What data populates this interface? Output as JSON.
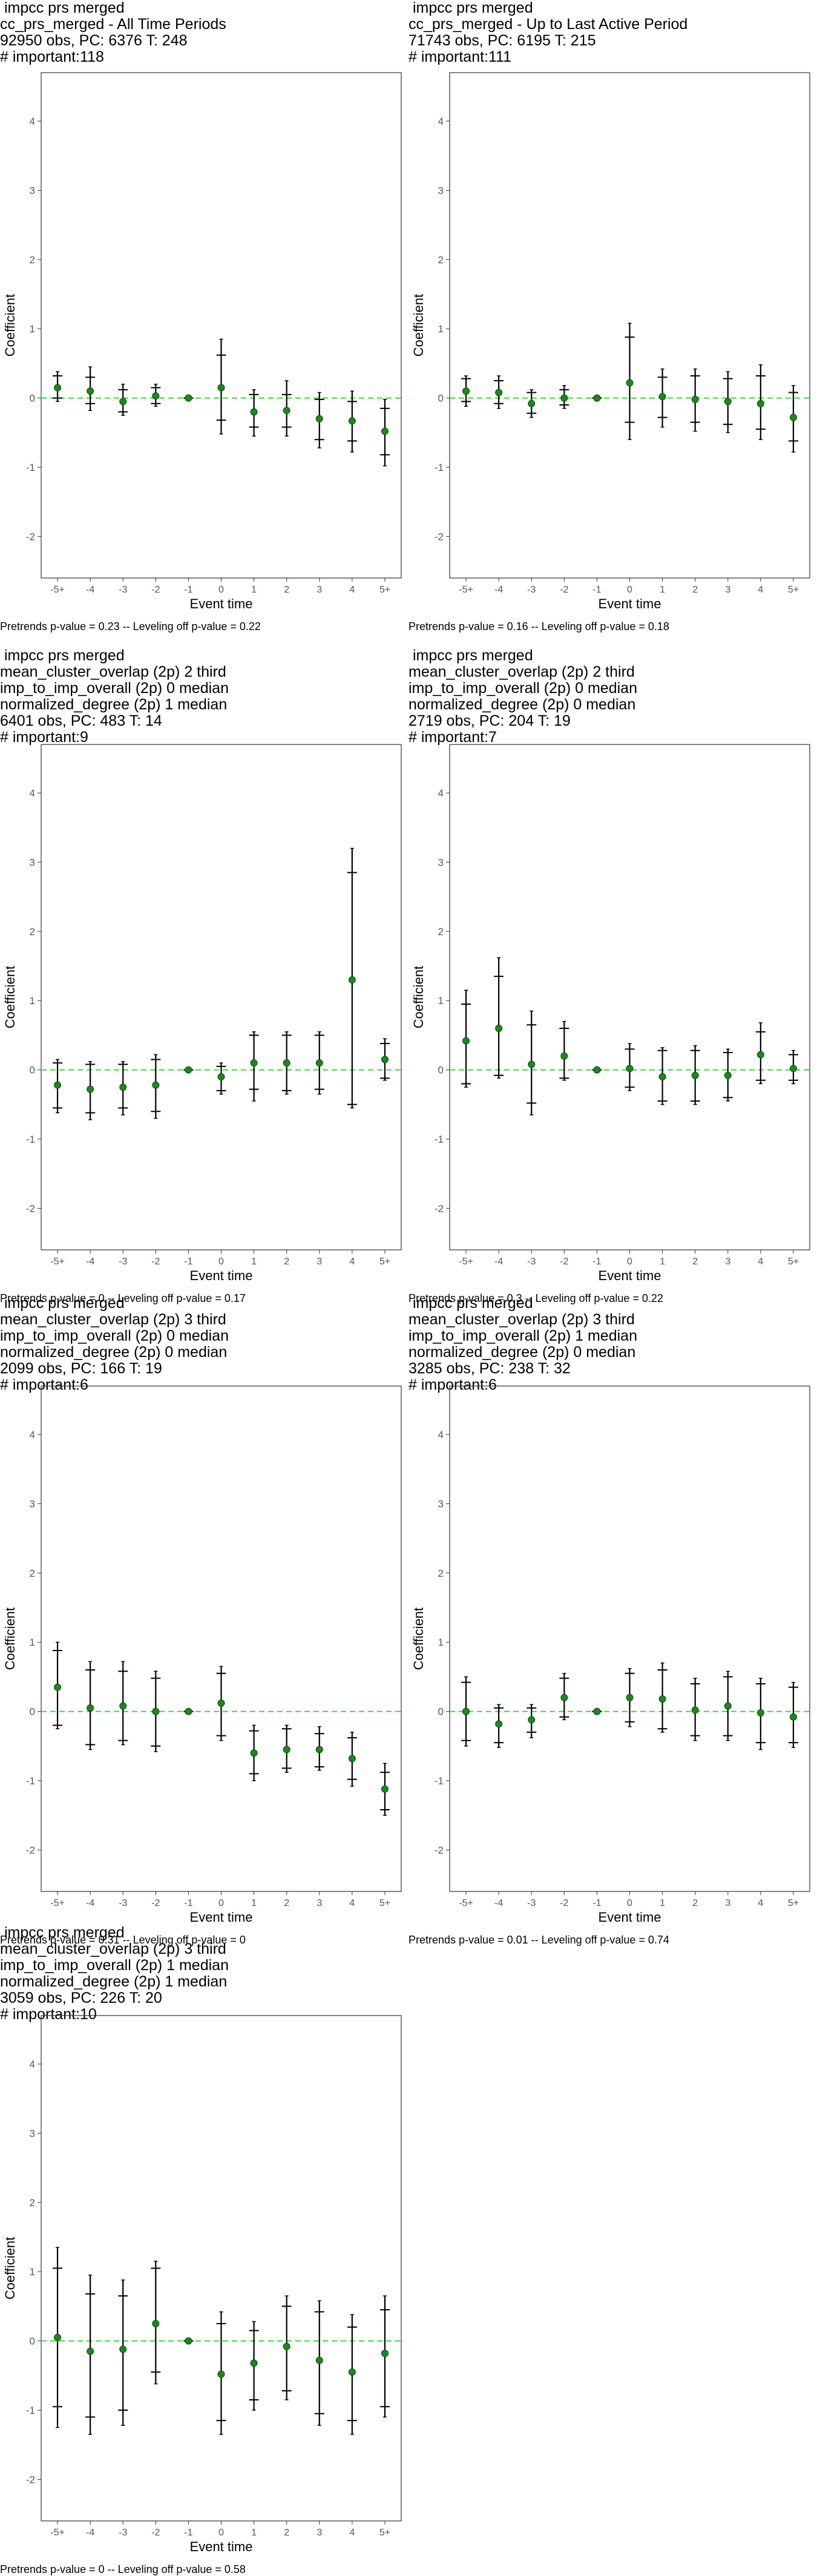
{
  "chart_data": [
    {
      "type": "scatter",
      "title_lines": [
        " impcc prs merged",
        "cc_prs_merged - All Time Periods",
        "92950 obs, PC: 6376 T: 248",
        "# important:118"
      ],
      "xlabel": "Event time",
      "ylabel": "Coefficient",
      "categories": [
        "-5+",
        "-4",
        "-3",
        "-2",
        "-1",
        "0",
        "1",
        "2",
        "3",
        "4",
        "5+"
      ],
      "ylim": [
        -2.6,
        4.7
      ],
      "yticks": [
        -2,
        -1,
        0,
        1,
        2,
        3,
        4
      ],
      "points": [
        0.15,
        0.1,
        -0.05,
        0.03,
        0.0,
        0.15,
        -0.2,
        -0.18,
        -0.3,
        -0.33,
        -0.48
      ],
      "inner": [
        [
          0.0,
          0.32
        ],
        [
          -0.08,
          0.3
        ],
        [
          -0.2,
          0.12
        ],
        [
          -0.08,
          0.15
        ],
        [
          0.0,
          0.0
        ],
        [
          -0.32,
          0.62
        ],
        [
          -0.42,
          0.05
        ],
        [
          -0.42,
          0.05
        ],
        [
          -0.6,
          -0.02
        ],
        [
          -0.62,
          -0.05
        ],
        [
          -0.82,
          -0.15
        ]
      ],
      "outer": [
        [
          -0.05,
          0.38
        ],
        [
          -0.18,
          0.45
        ],
        [
          -0.25,
          0.2
        ],
        [
          -0.12,
          0.2
        ],
        [
          0.0,
          0.0
        ],
        [
          -0.52,
          0.85
        ],
        [
          -0.55,
          0.12
        ],
        [
          -0.55,
          0.25
        ],
        [
          -0.72,
          0.08
        ],
        [
          -0.78,
          0.1
        ],
        [
          -0.98,
          -0.02
        ]
      ],
      "footnote": "Pretrends p-value = 0.23 -- Leveling off p-value = 0.22"
    },
    {
      "type": "scatter",
      "title_lines": [
        " impcc prs merged",
        "cc_prs_merged - Up to Last Active Period",
        "71743 obs, PC: 6195 T: 215",
        "# important:111"
      ],
      "xlabel": "Event time",
      "ylabel": "Coefficient",
      "categories": [
        "-5+",
        "-4",
        "-3",
        "-2",
        "-1",
        "0",
        "1",
        "2",
        "3",
        "4",
        "5+"
      ],
      "ylim": [
        -2.6,
        4.7
      ],
      "yticks": [
        -2,
        -1,
        0,
        1,
        2,
        3,
        4
      ],
      "points": [
        0.1,
        0.08,
        -0.08,
        0.0,
        0.0,
        0.22,
        0.02,
        -0.02,
        -0.05,
        -0.08,
        -0.28
      ],
      "inner": [
        [
          -0.05,
          0.28
        ],
        [
          -0.08,
          0.25
        ],
        [
          -0.22,
          0.08
        ],
        [
          -0.1,
          0.12
        ],
        [
          0.0,
          0.0
        ],
        [
          -0.35,
          0.88
        ],
        [
          -0.28,
          0.3
        ],
        [
          -0.35,
          0.32
        ],
        [
          -0.38,
          0.28
        ],
        [
          -0.45,
          0.32
        ],
        [
          -0.62,
          0.08
        ]
      ],
      "outer": [
        [
          -0.12,
          0.32
        ],
        [
          -0.15,
          0.32
        ],
        [
          -0.28,
          0.12
        ],
        [
          -0.15,
          0.18
        ],
        [
          0.0,
          0.0
        ],
        [
          -0.6,
          1.08
        ],
        [
          -0.42,
          0.42
        ],
        [
          -0.48,
          0.42
        ],
        [
          -0.5,
          0.38
        ],
        [
          -0.6,
          0.48
        ],
        [
          -0.78,
          0.18
        ]
      ],
      "footnote": "Pretrends p-value = 0.16 -- Leveling off p-value = 0.18"
    },
    {
      "type": "scatter",
      "title_lines": [
        " impcc prs merged",
        "mean_cluster_overlap (2p) 2 third",
        "imp_to_imp_overall (2p) 0 median",
        "normalized_degree (2p) 1 median",
        "6401 obs, PC: 483 T: 14",
        "# important:9"
      ],
      "xlabel": "Event time",
      "ylabel": "Coefficient",
      "categories": [
        "-5+",
        "-4",
        "-3",
        "-2",
        "-1",
        "0",
        "1",
        "2",
        "3",
        "4",
        "5+"
      ],
      "ylim": [
        -2.6,
        4.7
      ],
      "yticks": [
        -2,
        -1,
        0,
        1,
        2,
        3,
        4
      ],
      "points": [
        -0.22,
        -0.28,
        -0.25,
        -0.22,
        0.0,
        -0.1,
        0.1,
        0.1,
        0.1,
        1.3,
        0.15
      ],
      "inner": [
        [
          -0.55,
          0.1
        ],
        [
          -0.62,
          0.08
        ],
        [
          -0.55,
          0.08
        ],
        [
          -0.6,
          0.15
        ],
        [
          0.0,
          0.0
        ],
        [
          -0.3,
          0.05
        ],
        [
          -0.28,
          0.5
        ],
        [
          -0.3,
          0.5
        ],
        [
          -0.28,
          0.5
        ],
        [
          -0.5,
          2.85
        ],
        [
          -0.12,
          0.38
        ]
      ],
      "outer": [
        [
          -0.62,
          0.15
        ],
        [
          -0.72,
          0.12
        ],
        [
          -0.65,
          0.12
        ],
        [
          -0.7,
          0.22
        ],
        [
          0.0,
          0.0
        ],
        [
          -0.35,
          0.1
        ],
        [
          -0.45,
          0.55
        ],
        [
          -0.35,
          0.55
        ],
        [
          -0.35,
          0.55
        ],
        [
          -0.55,
          3.2
        ],
        [
          -0.15,
          0.45
        ]
      ],
      "footnote": "Pretrends p-value = 0 -- Leveling off p-value = 0.17"
    },
    {
      "type": "scatter",
      "title_lines": [
        " impcc prs merged",
        "mean_cluster_overlap (2p) 2 third",
        "imp_to_imp_overall (2p) 0 median",
        "normalized_degree (2p) 0 median",
        "2719 obs, PC: 204 T: 19",
        "# important:7"
      ],
      "xlabel": "Event time",
      "ylabel": "Coefficient",
      "categories": [
        "-5+",
        "-4",
        "-3",
        "-2",
        "-1",
        "0",
        "1",
        "2",
        "3",
        "4",
        "5+"
      ],
      "ylim": [
        -2.6,
        4.7
      ],
      "yticks": [
        -2,
        -1,
        0,
        1,
        2,
        3,
        4
      ],
      "points": [
        0.42,
        0.6,
        0.08,
        0.2,
        0.0,
        0.02,
        -0.1,
        -0.08,
        -0.08,
        0.22,
        0.02
      ],
      "inner": [
        [
          -0.2,
          0.95
        ],
        [
          -0.08,
          1.35
        ],
        [
          -0.48,
          0.65
        ],
        [
          -0.12,
          0.6
        ],
        [
          0.0,
          0.0
        ],
        [
          -0.25,
          0.3
        ],
        [
          -0.45,
          0.28
        ],
        [
          -0.45,
          0.28
        ],
        [
          -0.4,
          0.25
        ],
        [
          -0.15,
          0.55
        ],
        [
          -0.15,
          0.22
        ]
      ],
      "outer": [
        [
          -0.25,
          1.15
        ],
        [
          -0.12,
          1.62
        ],
        [
          -0.65,
          0.85
        ],
        [
          -0.15,
          0.7
        ],
        [
          0.0,
          0.0
        ],
        [
          -0.3,
          0.38
        ],
        [
          -0.5,
          0.32
        ],
        [
          -0.5,
          0.35
        ],
        [
          -0.45,
          0.3
        ],
        [
          -0.2,
          0.68
        ],
        [
          -0.2,
          0.28
        ]
      ],
      "footnote": "Pretrends p-value = 0.3 -- Leveling off p-value = 0.22"
    },
    {
      "type": "scatter",
      "title_lines": [
        " impcc prs merged",
        "mean_cluster_overlap (2p) 3 third",
        "imp_to_imp_overall (2p) 0 median",
        "normalized_degree (2p) 0 median",
        "2099 obs, PC: 166 T: 19",
        "# important:6"
      ],
      "xlabel": "Event time",
      "ylabel": "Coefficient",
      "categories": [
        "-5+",
        "-4",
        "-3",
        "-2",
        "-1",
        "0",
        "1",
        "2",
        "3",
        "4",
        "5+"
      ],
      "ylim": [
        -2.6,
        4.7
      ],
      "yticks": [
        -2,
        -1,
        0,
        1,
        2,
        3,
        4
      ],
      "points": [
        0.35,
        0.05,
        0.08,
        0.0,
        0.0,
        0.12,
        -0.6,
        -0.55,
        -0.55,
        -0.68,
        -1.12
      ],
      "inner": [
        [
          -0.2,
          0.88
        ],
        [
          -0.48,
          0.6
        ],
        [
          -0.42,
          0.58
        ],
        [
          -0.5,
          0.48
        ],
        [
          0.0,
          0.0
        ],
        [
          -0.35,
          0.55
        ],
        [
          -0.9,
          -0.28
        ],
        [
          -0.82,
          -0.25
        ],
        [
          -0.8,
          -0.32
        ],
        [
          -0.98,
          -0.38
        ],
        [
          -1.42,
          -0.88
        ]
      ],
      "outer": [
        [
          -0.25,
          1.0
        ],
        [
          -0.55,
          0.72
        ],
        [
          -0.48,
          0.72
        ],
        [
          -0.58,
          0.58
        ],
        [
          0.0,
          0.0
        ],
        [
          -0.42,
          0.65
        ],
        [
          -1.0,
          -0.2
        ],
        [
          -0.88,
          -0.2
        ],
        [
          -0.85,
          -0.22
        ],
        [
          -1.08,
          -0.3
        ],
        [
          -1.5,
          -0.75
        ]
      ],
      "footnote": "Pretrends p-value = 0.31 -- Leveling off p-value = 0"
    },
    {
      "type": "scatter",
      "title_lines": [
        " impcc prs merged",
        "mean_cluster_overlap (2p) 3 third",
        "imp_to_imp_overall (2p) 1 median",
        "normalized_degree (2p) 0 median",
        "3285 obs, PC: 238 T: 32",
        "# important:6"
      ],
      "xlabel": "Event time",
      "ylabel": "Coefficient",
      "categories": [
        "-5+",
        "-4",
        "-3",
        "-2",
        "-1",
        "0",
        "1",
        "2",
        "3",
        "4",
        "5+"
      ],
      "ylim": [
        -2.6,
        4.7
      ],
      "yticks": [
        -2,
        -1,
        0,
        1,
        2,
        3,
        4
      ],
      "points": [
        0.0,
        -0.18,
        -0.12,
        0.2,
        0.0,
        0.2,
        0.18,
        0.02,
        0.08,
        -0.02,
        -0.08
      ],
      "inner": [
        [
          -0.42,
          0.42
        ],
        [
          -0.45,
          0.05
        ],
        [
          -0.3,
          0.05
        ],
        [
          -0.08,
          0.48
        ],
        [
          0.0,
          0.0
        ],
        [
          -0.15,
          0.55
        ],
        [
          -0.25,
          0.6
        ],
        [
          -0.35,
          0.4
        ],
        [
          -0.35,
          0.5
        ],
        [
          -0.45,
          0.4
        ],
        [
          -0.45,
          0.35
        ]
      ],
      "outer": [
        [
          -0.5,
          0.5
        ],
        [
          -0.52,
          0.1
        ],
        [
          -0.38,
          0.1
        ],
        [
          -0.12,
          0.55
        ],
        [
          0.0,
          0.0
        ],
        [
          -0.22,
          0.62
        ],
        [
          -0.3,
          0.7
        ],
        [
          -0.42,
          0.48
        ],
        [
          -0.42,
          0.58
        ],
        [
          -0.55,
          0.48
        ],
        [
          -0.52,
          0.42
        ]
      ],
      "footnote": "Pretrends p-value = 0.01 -- Leveling off p-value = 0.74"
    },
    {
      "type": "scatter",
      "title_lines": [
        " impcc prs merged",
        "mean_cluster_overlap (2p) 3 third",
        "imp_to_imp_overall (2p) 1 median",
        "normalized_degree (2p) 1 median",
        "3059 obs, PC: 226 T: 20",
        "# important:10"
      ],
      "xlabel": "Event time",
      "ylabel": "Coefficient",
      "categories": [
        "-5+",
        "-4",
        "-3",
        "-2",
        "-1",
        "0",
        "1",
        "2",
        "3",
        "4",
        "5+"
      ],
      "ylim": [
        -2.6,
        4.7
      ],
      "yticks": [
        -2,
        -1,
        0,
        1,
        2,
        3,
        4
      ],
      "points": [
        0.05,
        -0.15,
        -0.12,
        0.25,
        0.0,
        -0.48,
        -0.32,
        -0.08,
        -0.28,
        -0.45,
        -0.18
      ],
      "inner": [
        [
          -0.95,
          1.05
        ],
        [
          -1.1,
          0.68
        ],
        [
          -1.0,
          0.65
        ],
        [
          -0.45,
          1.05
        ],
        [
          0.0,
          0.0
        ],
        [
          -1.15,
          0.25
        ],
        [
          -0.85,
          0.15
        ],
        [
          -0.72,
          0.5
        ],
        [
          -1.05,
          0.42
        ],
        [
          -1.15,
          0.2
        ],
        [
          -0.95,
          0.45
        ]
      ],
      "outer": [
        [
          -1.25,
          1.35
        ],
        [
          -1.35,
          0.95
        ],
        [
          -1.22,
          0.88
        ],
        [
          -0.62,
          1.15
        ],
        [
          0.0,
          0.0
        ],
        [
          -1.35,
          0.42
        ],
        [
          -1.0,
          0.28
        ],
        [
          -0.85,
          0.65
        ],
        [
          -1.22,
          0.58
        ],
        [
          -1.35,
          0.38
        ],
        [
          -1.1,
          0.65
        ]
      ],
      "footnote": "Pretrends p-value = 0 -- Leveling off p-value = 0.58"
    }
  ]
}
